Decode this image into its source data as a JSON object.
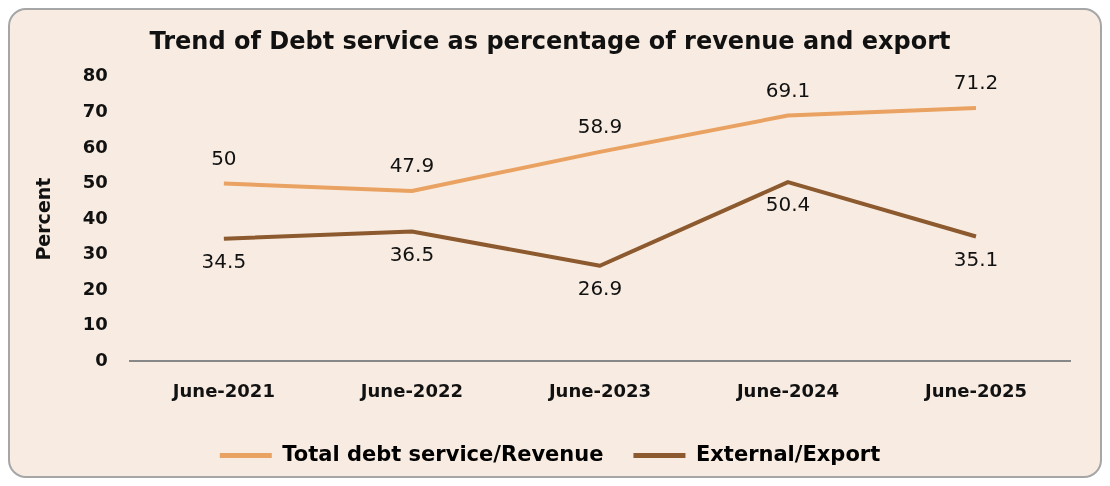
{
  "chart_data": {
    "type": "line",
    "title": "Trend of Debt service as percentage of revenue and export",
    "ylabel": "Percent",
    "categories": [
      "June-2021",
      "June-2022",
      "June-2023",
      "June-2024",
      "June-2025"
    ],
    "series": [
      {
        "name": "Total debt service/Revenue",
        "color": "#e9a261",
        "values": [
          50,
          47.9,
          58.9,
          69.1,
          71.2
        ]
      },
      {
        "name": "External/Export",
        "color": "#8c5a2e",
        "values": [
          34.5,
          36.5,
          26.9,
          50.4,
          35.1
        ]
      }
    ],
    "ylim": [
      0,
      80
    ],
    "yticks": [
      0,
      10,
      20,
      30,
      40,
      50,
      60,
      70,
      80
    ],
    "grid": false,
    "legend": "bottom",
    "marker": "none",
    "line_style": "solid",
    "data_labels": true
  }
}
